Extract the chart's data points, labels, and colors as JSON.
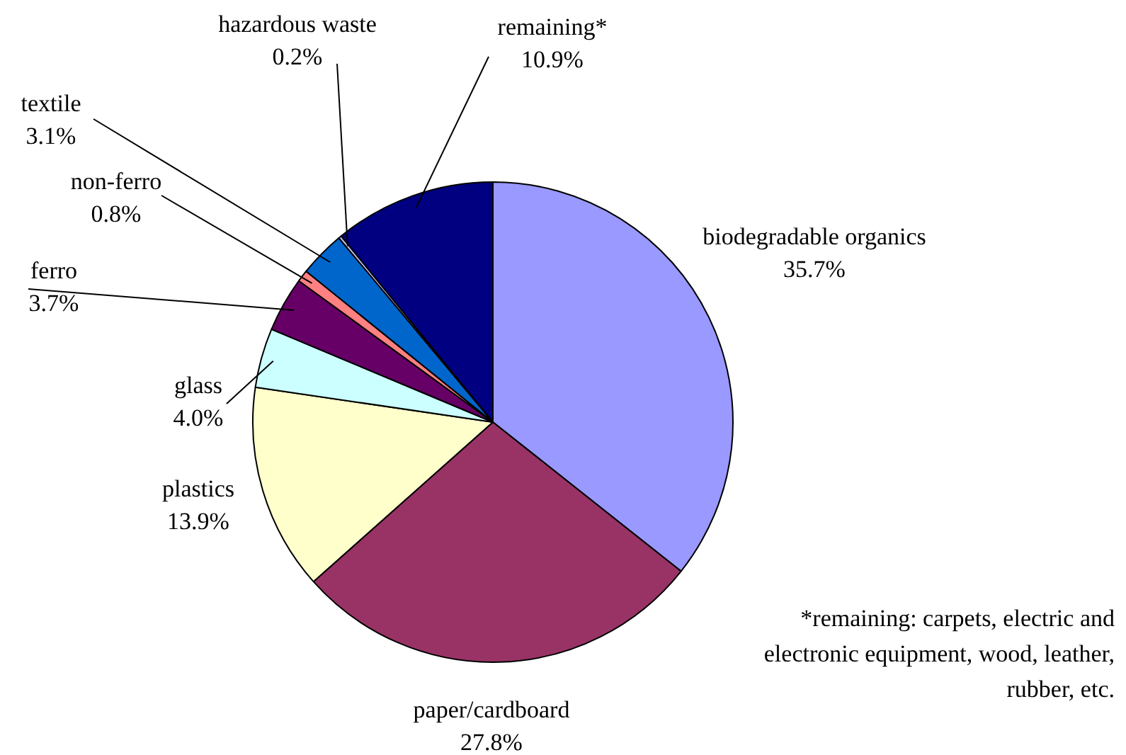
{
  "chart_data": {
    "type": "pie",
    "categories": [
      "biodegradable organics",
      "paper/cardboard",
      "plastics",
      "glass",
      "ferro",
      "non-ferro",
      "textile",
      "hazardous waste",
      "remaining*"
    ],
    "values": [
      35.7,
      27.8,
      13.9,
      4.0,
      3.7,
      0.8,
      3.1,
      0.2,
      10.9
    ],
    "colors": [
      "#9999ff",
      "#993366",
      "#ffffcc",
      "#ccffff",
      "#660066",
      "#ff8080",
      "#0066cc",
      "#ccccff",
      "#000080"
    ],
    "value_labels": [
      "35.7%",
      "27.8%",
      "13.9%",
      "4.0%",
      "3.7%",
      "0.8%",
      "3.1%",
      "0.2%",
      "10.9%"
    ],
    "legend": false,
    "annotations": [
      "*remaining: carpets, electric and electronic equipment, wood, leather, rubber, etc."
    ]
  }
}
